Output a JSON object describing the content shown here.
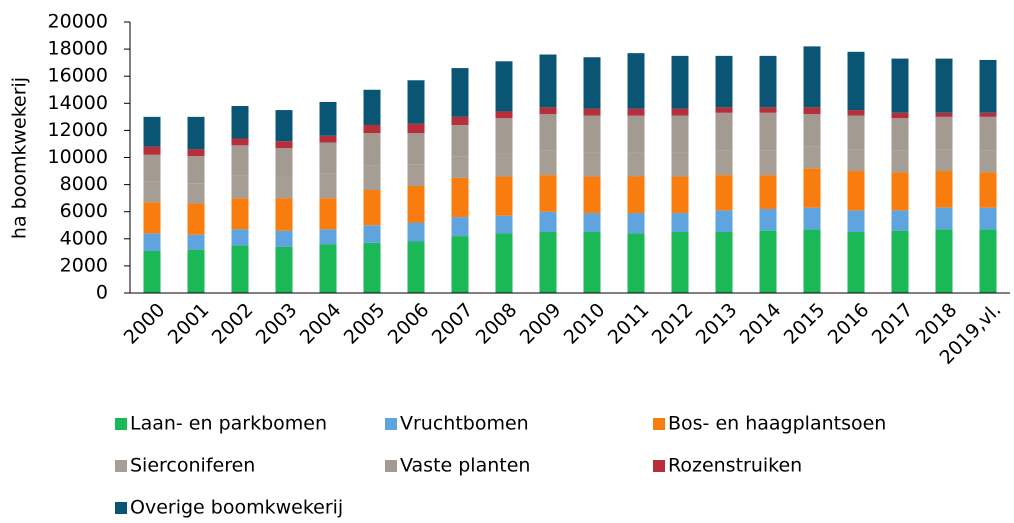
{
  "chart_data": {
    "type": "bar",
    "stacked": true,
    "y_label": "ha boomkwekerij",
    "categories": [
      "2000",
      "2001",
      "2002",
      "2003",
      "2004",
      "2005",
      "2006",
      "2007",
      "2008",
      "2009",
      "2010",
      "2011",
      "2012",
      "2013",
      "2014",
      "2015",
      "2016",
      "2017",
      "2018",
      "2019,vl."
    ],
    "ylim": [
      0,
      20000
    ],
    "yticks": [
      0,
      2000,
      4000,
      6000,
      8000,
      10000,
      12000,
      14000,
      16000,
      18000,
      20000
    ],
    "legend": "bottom",
    "series": [
      {
        "name": "Laan- en parkbomen",
        "color": "#1ab856",
        "values": [
          3100,
          3200,
          3500,
          3400,
          3600,
          3700,
          3800,
          4200,
          4400,
          4500,
          4500,
          4400,
          4500,
          4500,
          4600,
          4700,
          4500,
          4600,
          4700,
          4700
        ]
      },
      {
        "name": "Vruchtbomen",
        "color": "#5fa4de",
        "values": [
          1300,
          1100,
          1200,
          1200,
          1100,
          1300,
          1400,
          1400,
          1300,
          1500,
          1400,
          1500,
          1400,
          1600,
          1600,
          1600,
          1600,
          1500,
          1600,
          1600
        ]
      },
      {
        "name": "Bos- en haagplantsoen",
        "color": "#f97c0e",
        "values": [
          2300,
          2300,
          2300,
          2400,
          2300,
          2600,
          2700,
          2900,
          2900,
          2700,
          2700,
          2700,
          2700,
          2600,
          2500,
          2900,
          2900,
          2800,
          2700,
          2600
        ]
      },
      {
        "name": "Sierconiferen",
        "color": "#a69d95",
        "values": [
          1500,
          1500,
          1700,
          1600,
          1800,
          1800,
          1600,
          1600,
          1700,
          1800,
          1800,
          1800,
          1800,
          1800,
          1800,
          1600,
          1600,
          1600,
          1600,
          1600
        ]
      },
      {
        "name": "Vaste planten",
        "color": "#a39a92",
        "values": [
          2000,
          2000,
          2200,
          2100,
          2300,
          2400,
          2300,
          2300,
          2600,
          2700,
          2700,
          2700,
          2700,
          2800,
          2800,
          2400,
          2500,
          2400,
          2400,
          2500
        ]
      },
      {
        "name": "Rozenstruiken",
        "color": "#b52e3a",
        "values": [
          600,
          500,
          500,
          500,
          500,
          600,
          700,
          600,
          500,
          500,
          500,
          500,
          500,
          400,
          400,
          500,
          400,
          400,
          300,
          300
        ]
      },
      {
        "name": "Overige boomkwekerij",
        "color": "#0b5574",
        "values": [
          2200,
          2400,
          2400,
          2300,
          2500,
          2600,
          3200,
          3600,
          3700,
          3900,
          3800,
          4100,
          3900,
          3800,
          3800,
          4500,
          4300,
          4000,
          4000,
          3900
        ]
      }
    ]
  }
}
